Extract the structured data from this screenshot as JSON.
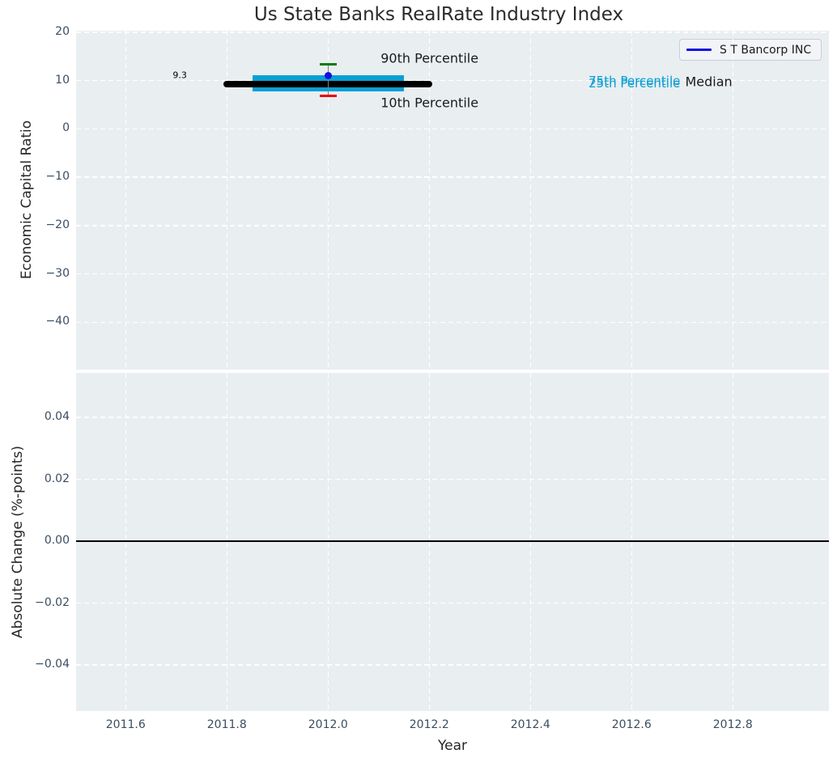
{
  "title": "Us State Banks RealRate Industry Index",
  "legend": {
    "label": "S T Bancorp INC",
    "line_color": "#1010dd"
  },
  "colors": {
    "figure_bg": "#ffffff",
    "panel_bg": "#e9eef1",
    "grid": "#ffffff",
    "tick_label": "#3b4d61",
    "axis_label": "#262626",
    "band": "#09a0d4",
    "median_line": "#000000",
    "company_dot": "#1010dd",
    "p90_cap": "#007d00",
    "p10_cap": "#ee0000",
    "whisker_line": "#808080",
    "zero_line": "#000000"
  },
  "chart_data": [
    {
      "type": "errorbar",
      "panel": "top",
      "title": "Us State Banks RealRate Industry Index",
      "ylabel": "Economic Capital Ratio",
      "ylim": [
        -49.83,
        20.33
      ],
      "yticks": [
        20,
        10,
        0,
        -10,
        -20,
        -30,
        -40
      ],
      "ytick_labels": [
        "20",
        "10",
        "0",
        "−10",
        "−20",
        "−30",
        "−40"
      ],
      "xlim": [
        2011.502,
        2012.99
      ],
      "xticks": [
        2011.6,
        2011.8,
        2012.0,
        2012.2,
        2012.4,
        2012.6,
        2012.8
      ],
      "grid": true,
      "legend_position": "upper right",
      "series": [
        {
          "name": "S T Bancorp INC",
          "type": "point",
          "x": 2012.0,
          "y": 11.0
        }
      ],
      "industry_distribution": {
        "x_center": 2012.0,
        "median": {
          "value": 9.3,
          "x_start": 2011.8,
          "x_end": 2012.2
        },
        "p75": 11.1,
        "p25": 7.8,
        "band_x_start": 2011.85,
        "band_x_end": 2012.15,
        "p90": 13.3,
        "p10": 6.8
      },
      "annotations": [
        {
          "id": "median-value",
          "text": "9.3",
          "x": 2011.693,
          "y": 11.2,
          "color": "#000000",
          "size": 11
        },
        {
          "id": "p90-label",
          "text": "90th Percentile",
          "x": 2012.104,
          "y": 14.7,
          "color": "#1a1a1a",
          "size": 16
        },
        {
          "id": "p10-label",
          "text": "10th Percentile",
          "x": 2012.104,
          "y": 5.4,
          "color": "#1a1a1a",
          "size": 16
        },
        {
          "id": "p75-label",
          "text": "75th Percentile",
          "x": 2012.515,
          "y": 9.9,
          "color": "#0a9fd4",
          "size": 15
        },
        {
          "id": "p25-label",
          "text": "25th Percentile",
          "x": 2012.515,
          "y": 9.4,
          "color": "#0a9fd4",
          "size": 15
        },
        {
          "id": "median-label",
          "text": "Median",
          "x": 2012.706,
          "y": 9.7,
          "color": "#1a1a1a",
          "size": 16
        }
      ]
    },
    {
      "type": "line",
      "panel": "bottom",
      "ylabel": "Absolute Change (%-points)",
      "xlabel": "Year",
      "ylim": [
        -0.0549,
        0.0544
      ],
      "yticks": [
        0.04,
        0.02,
        0.0,
        -0.02,
        -0.04
      ],
      "ytick_labels": [
        "0.04",
        "0.02",
        "0.00",
        "−0.02",
        "−0.04"
      ],
      "xlim": [
        2011.502,
        2012.99
      ],
      "xticks": [
        2011.6,
        2011.8,
        2012.0,
        2012.2,
        2012.4,
        2012.6,
        2012.8
      ],
      "xtick_labels": [
        "2011.6",
        "2011.8",
        "2012.0",
        "2012.2",
        "2012.4",
        "2012.6",
        "2012.8"
      ],
      "zero_line_y": 0.0,
      "grid": true
    }
  ]
}
